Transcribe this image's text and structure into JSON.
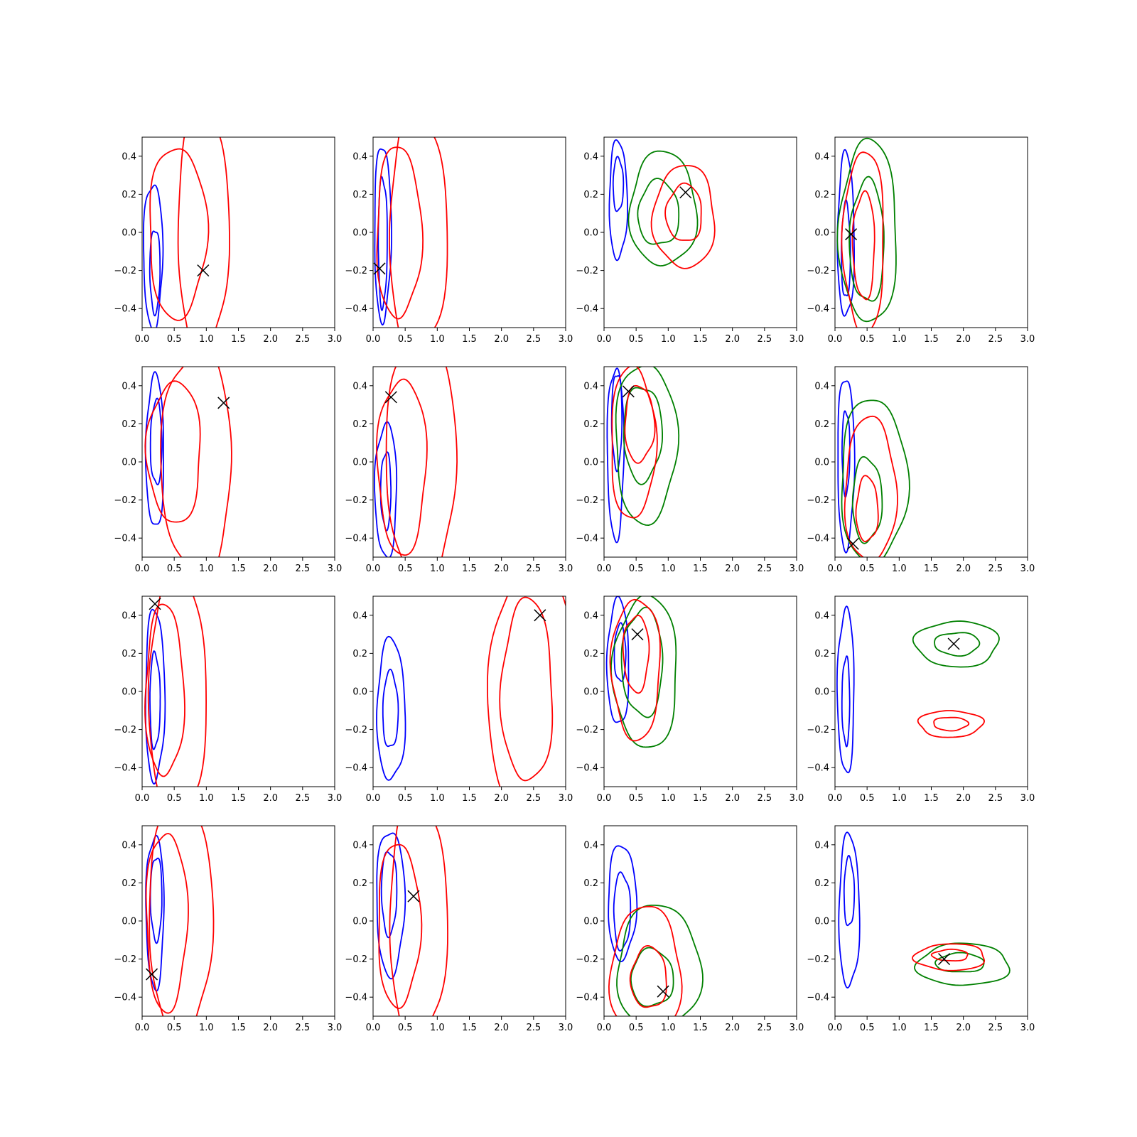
{
  "chart_data": {
    "type": "contour",
    "layout": {
      "rows": 4,
      "cols": 4
    },
    "xlim": [
      0.0,
      3.0
    ],
    "ylim": [
      -0.5,
      0.5
    ],
    "xticks": [
      "0.0",
      "0.5",
      "1.0",
      "1.5",
      "2.0",
      "2.5",
      "3.0"
    ],
    "xtick_values": [
      0,
      0.5,
      1,
      1.5,
      2,
      2.5,
      3
    ],
    "yticks": [
      "−0.4",
      "−0.2",
      "0.0",
      "0.2",
      "0.4"
    ],
    "ytick_values": [
      -0.4,
      -0.2,
      0,
      0.2,
      0.4
    ],
    "colors": {
      "blue": "#0000ff",
      "red": "#ff0000",
      "green": "#008000",
      "marker": "#000000"
    },
    "marker": "x",
    "panels": [
      {
        "row": 1,
        "col": 1,
        "marker": [
          0.95,
          -0.2
        ],
        "contours": [
          {
            "color": "blue",
            "levels": [
              {
                "cx": 0.17,
                "cy": -0.12,
                "rx": 0.15,
                "ry": 0.38
              },
              {
                "cx": 0.2,
                "cy": -0.2,
                "rx": 0.08,
                "ry": 0.22
              }
            ]
          },
          {
            "color": "red",
            "levels": [
              {
                "cx": 0.55,
                "cy": 0.0,
                "rx": 0.45,
                "ry": 0.45
              },
              {
                "cx": 0.95,
                "cy": 0.0,
                "rx": 0.4,
                "ry": 0.65
              }
            ]
          }
        ]
      },
      {
        "row": 1,
        "col": 2,
        "marker": [
          0.1,
          -0.19
        ],
        "contours": [
          {
            "color": "blue",
            "levels": [
              {
                "cx": 0.15,
                "cy": 0.0,
                "rx": 0.13,
                "ry": 0.46
              },
              {
                "cx": 0.15,
                "cy": -0.05,
                "rx": 0.07,
                "ry": 0.34
              }
            ]
          },
          {
            "color": "red",
            "levels": [
              {
                "cx": 0.4,
                "cy": 0.0,
                "rx": 0.35,
                "ry": 0.45
              },
              {
                "cx": 0.7,
                "cy": 0.0,
                "rx": 0.45,
                "ry": 0.65
              }
            ]
          }
        ]
      },
      {
        "row": 1,
        "col": 3,
        "marker": [
          1.27,
          0.21
        ],
        "contours": [
          {
            "color": "blue",
            "levels": [
              {
                "cx": 0.22,
                "cy": 0.17,
                "rx": 0.14,
                "ry": 0.31
              },
              {
                "cx": 0.22,
                "cy": 0.25,
                "rx": 0.08,
                "ry": 0.14
              }
            ]
          },
          {
            "color": "green",
            "levels": [
              {
                "cx": 0.92,
                "cy": 0.12,
                "rx": 0.52,
                "ry": 0.3
              },
              {
                "cx": 0.85,
                "cy": 0.1,
                "rx": 0.32,
                "ry": 0.17
              }
            ]
          },
          {
            "color": "red",
            "levels": [
              {
                "cx": 1.25,
                "cy": 0.08,
                "rx": 0.48,
                "ry": 0.27
              },
              {
                "cx": 1.25,
                "cy": 0.1,
                "rx": 0.28,
                "ry": 0.15
              }
            ]
          }
        ]
      },
      {
        "row": 1,
        "col": 4,
        "marker": [
          0.25,
          -0.01
        ],
        "contours": [
          {
            "color": "blue",
            "levels": [
              {
                "cx": 0.17,
                "cy": -0.02,
                "rx": 0.13,
                "ry": 0.43
              },
              {
                "cx": 0.17,
                "cy": -0.1,
                "rx": 0.07,
                "ry": 0.25
              }
            ]
          },
          {
            "color": "green",
            "levels": [
              {
                "cx": 0.52,
                "cy": 0.0,
                "rx": 0.45,
                "ry": 0.48
              },
              {
                "cx": 0.5,
                "cy": -0.05,
                "rx": 0.27,
                "ry": 0.32
              }
            ]
          },
          {
            "color": "red",
            "levels": [
              {
                "cx": 0.45,
                "cy": -0.05,
                "rx": 0.32,
                "ry": 0.48
              },
              {
                "cx": 0.45,
                "cy": -0.07,
                "rx": 0.17,
                "ry": 0.28
              }
            ]
          }
        ]
      },
      {
        "row": 2,
        "col": 1,
        "marker": [
          1.27,
          0.31
        ],
        "contours": [
          {
            "color": "blue",
            "levels": [
              {
                "cx": 0.2,
                "cy": 0.05,
                "rx": 0.14,
                "ry": 0.4
              },
              {
                "cx": 0.22,
                "cy": 0.1,
                "rx": 0.09,
                "ry": 0.22
              }
            ]
          },
          {
            "color": "red",
            "levels": [
              {
                "cx": 0.5,
                "cy": 0.05,
                "rx": 0.42,
                "ry": 0.37
              },
              {
                "cx": 0.85,
                "cy": 0.0,
                "rx": 0.55,
                "ry": 0.6
              }
            ]
          }
        ]
      },
      {
        "row": 2,
        "col": 2,
        "marker": [
          0.28,
          0.34
        ],
        "contours": [
          {
            "color": "blue",
            "levels": [
              {
                "cx": 0.2,
                "cy": -0.15,
                "rx": 0.17,
                "ry": 0.35
              },
              {
                "cx": 0.2,
                "cy": -0.15,
                "rx": 0.08,
                "ry": 0.2
              }
            ]
          },
          {
            "color": "red",
            "levels": [
              {
                "cx": 0.45,
                "cy": -0.02,
                "rx": 0.38,
                "ry": 0.46
              },
              {
                "cx": 0.75,
                "cy": 0.0,
                "rx": 0.55,
                "ry": 0.65
              }
            ]
          }
        ]
      },
      {
        "row": 2,
        "col": 3,
        "marker": [
          0.38,
          0.37
        ],
        "contours": [
          {
            "color": "blue",
            "levels": [
              {
                "cx": 0.18,
                "cy": 0.05,
                "rx": 0.13,
                "ry": 0.45
              },
              {
                "cx": 0.2,
                "cy": 0.22,
                "rx": 0.08,
                "ry": 0.25
              }
            ]
          },
          {
            "color": "green",
            "levels": [
              {
                "cx": 0.65,
                "cy": 0.1,
                "rx": 0.48,
                "ry": 0.42
              },
              {
                "cx": 0.6,
                "cy": 0.15,
                "rx": 0.3,
                "ry": 0.25
              }
            ]
          },
          {
            "color": "red",
            "levels": [
              {
                "cx": 0.45,
                "cy": 0.1,
                "rx": 0.35,
                "ry": 0.4
              },
              {
                "cx": 0.55,
                "cy": 0.2,
                "rx": 0.23,
                "ry": 0.2
              }
            ]
          }
        ]
      },
      {
        "row": 2,
        "col": 4,
        "marker": [
          0.28,
          -0.43
        ],
        "contours": [
          {
            "color": "blue",
            "levels": [
              {
                "cx": 0.17,
                "cy": 0.0,
                "rx": 0.13,
                "ry": 0.45
              },
              {
                "cx": 0.17,
                "cy": 0.05,
                "rx": 0.06,
                "ry": 0.22
              }
            ]
          },
          {
            "color": "green",
            "levels": [
              {
                "cx": 0.6,
                "cy": -0.1,
                "rx": 0.52,
                "ry": 0.43
              },
              {
                "cx": 0.5,
                "cy": -0.2,
                "rx": 0.23,
                "ry": 0.22
              }
            ]
          },
          {
            "color": "red",
            "levels": [
              {
                "cx": 0.55,
                "cy": -0.15,
                "rx": 0.4,
                "ry": 0.38
              },
              {
                "cx": 0.5,
                "cy": -0.25,
                "rx": 0.17,
                "ry": 0.17
              }
            ]
          }
        ]
      },
      {
        "row": 3,
        "col": 1,
        "marker": [
          0.2,
          0.46
        ],
        "contours": [
          {
            "color": "blue",
            "levels": [
              {
                "cx": 0.2,
                "cy": -0.02,
                "rx": 0.15,
                "ry": 0.45
              },
              {
                "cx": 0.2,
                "cy": -0.05,
                "rx": 0.08,
                "ry": 0.25
              }
            ]
          },
          {
            "color": "red",
            "levels": [
              {
                "cx": 0.35,
                "cy": 0.0,
                "rx": 0.3,
                "ry": 0.45
              },
              {
                "cx": 0.55,
                "cy": 0.0,
                "rx": 0.45,
                "ry": 0.65
              }
            ]
          }
        ]
      },
      {
        "row": 3,
        "col": 2,
        "marker": [
          2.6,
          0.4
        ],
        "contours": [
          {
            "color": "blue",
            "levels": [
              {
                "cx": 0.28,
                "cy": -0.1,
                "rx": 0.22,
                "ry": 0.37
              },
              {
                "cx": 0.27,
                "cy": -0.1,
                "rx": 0.12,
                "ry": 0.2
              }
            ]
          },
          {
            "color": "red",
            "levels": [
              {
                "cx": 2.4,
                "cy": 0.0,
                "rx": 0.4,
                "ry": 0.48
              },
              {
                "cx": 2.5,
                "cy": 0.0,
                "rx": 0.7,
                "ry": 0.7
              }
            ]
          }
        ]
      },
      {
        "row": 3,
        "col": 3,
        "marker": [
          0.52,
          0.3
        ],
        "contours": [
          {
            "color": "blue",
            "levels": [
              {
                "cx": 0.22,
                "cy": 0.15,
                "rx": 0.17,
                "ry": 0.33
              },
              {
                "cx": 0.25,
                "cy": 0.2,
                "rx": 0.09,
                "ry": 0.15
              }
            ]
          },
          {
            "color": "green",
            "levels": [
              {
                "cx": 0.65,
                "cy": 0.1,
                "rx": 0.5,
                "ry": 0.4
              },
              {
                "cx": 0.6,
                "cy": 0.15,
                "rx": 0.32,
                "ry": 0.28
              }
            ]
          },
          {
            "color": "red",
            "levels": [
              {
                "cx": 0.5,
                "cy": 0.12,
                "rx": 0.38,
                "ry": 0.37
              },
              {
                "cx": 0.5,
                "cy": 0.2,
                "rx": 0.2,
                "ry": 0.2
              }
            ]
          }
        ]
      },
      {
        "row": 3,
        "col": 4,
        "marker": [
          1.85,
          0.25
        ],
        "contours": [
          {
            "color": "blue",
            "levels": [
              {
                "cx": 0.17,
                "cy": 0.0,
                "rx": 0.13,
                "ry": 0.43
              },
              {
                "cx": 0.17,
                "cy": -0.05,
                "rx": 0.06,
                "ry": 0.23
              }
            ]
          },
          {
            "color": "green",
            "levels": [
              {
                "cx": 1.9,
                "cy": 0.25,
                "rx": 0.65,
                "ry": 0.12
              },
              {
                "cx": 1.9,
                "cy": 0.25,
                "rx": 0.35,
                "ry": 0.06
              }
            ]
          },
          {
            "color": "red",
            "levels": [
              {
                "cx": 1.8,
                "cy": -0.17,
                "rx": 0.5,
                "ry": 0.07
              },
              {
                "cx": 1.8,
                "cy": -0.17,
                "rx": 0.27,
                "ry": 0.035
              }
            ]
          }
        ]
      },
      {
        "row": 4,
        "col": 1,
        "marker": [
          0.15,
          -0.28
        ],
        "contours": [
          {
            "color": "blue",
            "levels": [
              {
                "cx": 0.2,
                "cy": 0.05,
                "rx": 0.14,
                "ry": 0.4
              },
              {
                "cx": 0.22,
                "cy": 0.12,
                "rx": 0.09,
                "ry": 0.22
              }
            ]
          },
          {
            "color": "red",
            "levels": [
              {
                "cx": 0.38,
                "cy": 0.0,
                "rx": 0.32,
                "ry": 0.47
              },
              {
                "cx": 0.6,
                "cy": 0.0,
                "rx": 0.5,
                "ry": 0.62
              }
            ]
          }
        ]
      },
      {
        "row": 4,
        "col": 2,
        "marker": [
          0.63,
          0.13
        ],
        "contours": [
          {
            "color": "blue",
            "levels": [
              {
                "cx": 0.27,
                "cy": 0.1,
                "rx": 0.22,
                "ry": 0.38
              },
              {
                "cx": 0.25,
                "cy": 0.15,
                "rx": 0.12,
                "ry": 0.22
              }
            ]
          },
          {
            "color": "red",
            "levels": [
              {
                "cx": 0.4,
                "cy": -0.02,
                "rx": 0.33,
                "ry": 0.43
              },
              {
                "cx": 0.7,
                "cy": 0.0,
                "rx": 0.45,
                "ry": 0.65
              }
            ]
          }
        ]
      },
      {
        "row": 4,
        "col": 3,
        "marker": [
          0.92,
          -0.37
        ],
        "contours": [
          {
            "color": "blue",
            "levels": [
              {
                "cx": 0.28,
                "cy": 0.1,
                "rx": 0.22,
                "ry": 0.3
              },
              {
                "cx": 0.28,
                "cy": 0.05,
                "rx": 0.13,
                "ry": 0.2
              }
            ]
          },
          {
            "color": "green",
            "levels": [
              {
                "cx": 0.85,
                "cy": -0.25,
                "rx": 0.65,
                "ry": 0.33
              },
              {
                "cx": 0.75,
                "cy": -0.3,
                "rx": 0.33,
                "ry": 0.15
              }
            ]
          },
          {
            "color": "red",
            "levels": [
              {
                "cx": 0.65,
                "cy": -0.28,
                "rx": 0.55,
                "ry": 0.35
              },
              {
                "cx": 0.7,
                "cy": -0.3,
                "rx": 0.28,
                "ry": 0.16
              }
            ]
          }
        ]
      },
      {
        "row": 4,
        "col": 4,
        "marker": [
          1.7,
          -0.2
        ],
        "contours": [
          {
            "color": "blue",
            "levels": [
              {
                "cx": 0.22,
                "cy": 0.05,
                "rx": 0.16,
                "ry": 0.4
              },
              {
                "cx": 0.22,
                "cy": 0.15,
                "rx": 0.08,
                "ry": 0.18
              }
            ]
          },
          {
            "color": "green",
            "levels": [
              {
                "cx": 2.0,
                "cy": -0.23,
                "rx": 0.72,
                "ry": 0.11
              },
              {
                "cx": 1.95,
                "cy": -0.22,
                "rx": 0.38,
                "ry": 0.05
              }
            ]
          },
          {
            "color": "red",
            "levels": [
              {
                "cx": 1.8,
                "cy": -0.19,
                "rx": 0.55,
                "ry": 0.07
              },
              {
                "cx": 1.8,
                "cy": -0.18,
                "rx": 0.28,
                "ry": 0.03
              }
            ]
          }
        ]
      }
    ]
  }
}
